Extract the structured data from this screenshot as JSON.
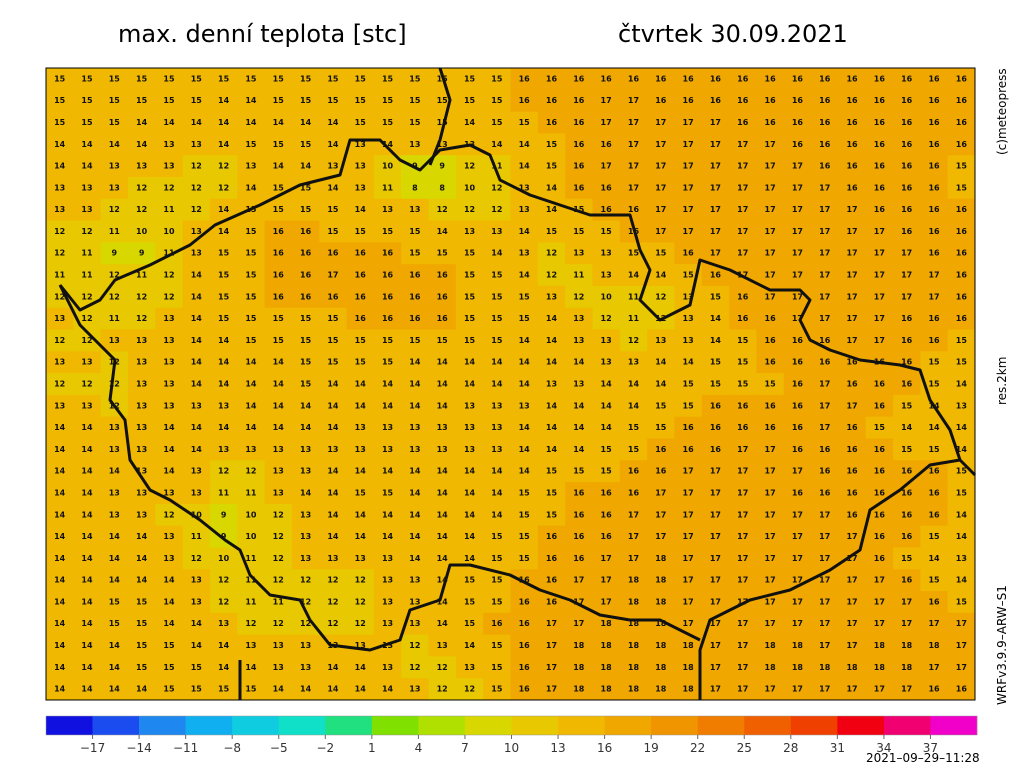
{
  "header": {
    "title": "max. denní teplota [stc]",
    "date": "čtvrtek 30.09.2021"
  },
  "side_labels": {
    "copyright": "(c)meteopress",
    "resolution": "res.2km",
    "model": "WRFv3.9.9–ARW–S1"
  },
  "timestamp": "2021–09–29–11:28",
  "colorbar": {
    "range": [
      -20,
      40
    ],
    "colors": [
      "#1010e0",
      "#1a4cf0",
      "#1e88f0",
      "#10b0f0",
      "#10cce0",
      "#10e0c8",
      "#20e080",
      "#80e000",
      "#b0e000",
      "#d8d800",
      "#e8c800",
      "#f0b800",
      "#f0a800",
      "#f09400",
      "#f07c00",
      "#f06000",
      "#f04000",
      "#f00010",
      "#f00070",
      "#f000c8"
    ],
    "ticks": [
      {
        "value": -17,
        "label": "−17"
      },
      {
        "value": -14,
        "label": "−14"
      },
      {
        "value": -11,
        "label": "−11"
      },
      {
        "value": -8,
        "label": "−8"
      },
      {
        "value": -5,
        "label": "−5"
      },
      {
        "value": -2,
        "label": "−2"
      },
      1,
      4,
      7,
      10,
      13,
      16,
      19,
      22,
      25,
      28,
      31,
      34,
      37
    ]
  },
  "grid": {
    "rows": [
      [
        15,
        15,
        15,
        15,
        15,
        15,
        15,
        15,
        15,
        15,
        15,
        15,
        15,
        15,
        15,
        15,
        15,
        16,
        16,
        16,
        16,
        16,
        16,
        16,
        16,
        16,
        16,
        16,
        16,
        16,
        16,
        16,
        16,
        16
      ],
      [
        15,
        15,
        15,
        15,
        15,
        15,
        14,
        14,
        15,
        15,
        15,
        15,
        15,
        15,
        15,
        15,
        15,
        16,
        16,
        16,
        17,
        17,
        16,
        16,
        16,
        16,
        16,
        16,
        16,
        16,
        16,
        16,
        16,
        16
      ],
      [
        15,
        15,
        15,
        14,
        14,
        14,
        14,
        14,
        14,
        14,
        14,
        15,
        15,
        15,
        15,
        14,
        15,
        15,
        16,
        16,
        17,
        17,
        17,
        17,
        17,
        16,
        16,
        16,
        16,
        16,
        16,
        16,
        16,
        16
      ],
      [
        14,
        14,
        14,
        14,
        13,
        13,
        14,
        15,
        15,
        15,
        14,
        13,
        14,
        13,
        13,
        13,
        14,
        14,
        15,
        16,
        16,
        17,
        17,
        17,
        17,
        17,
        17,
        16,
        16,
        16,
        16,
        16,
        16,
        16
      ],
      [
        14,
        14,
        13,
        13,
        13,
        12,
        12,
        13,
        14,
        14,
        13,
        13,
        10,
        9,
        9,
        12,
        11,
        14,
        15,
        16,
        17,
        17,
        17,
        17,
        17,
        17,
        17,
        17,
        16,
        16,
        16,
        16,
        16,
        15
      ],
      [
        13,
        13,
        13,
        12,
        12,
        12,
        12,
        14,
        15,
        15,
        14,
        13,
        11,
        8,
        8,
        10,
        12,
        13,
        14,
        16,
        16,
        17,
        17,
        17,
        17,
        17,
        17,
        17,
        17,
        16,
        16,
        16,
        16,
        15
      ],
      [
        13,
        13,
        12,
        12,
        11,
        12,
        14,
        15,
        15,
        15,
        15,
        14,
        13,
        13,
        12,
        12,
        12,
        13,
        14,
        15,
        16,
        16,
        17,
        17,
        17,
        17,
        17,
        17,
        17,
        17,
        16,
        16,
        16,
        16
      ],
      [
        12,
        12,
        11,
        10,
        10,
        13,
        14,
        15,
        16,
        16,
        15,
        15,
        15,
        15,
        14,
        13,
        13,
        14,
        15,
        15,
        15,
        16,
        17,
        17,
        17,
        17,
        17,
        17,
        17,
        17,
        17,
        16,
        16,
        16
      ],
      [
        12,
        11,
        9,
        9,
        11,
        13,
        15,
        15,
        16,
        16,
        16,
        16,
        16,
        15,
        15,
        15,
        14,
        13,
        12,
        13,
        13,
        15,
        15,
        16,
        17,
        17,
        17,
        17,
        17,
        17,
        17,
        17,
        16,
        16
      ],
      [
        11,
        11,
        12,
        11,
        12,
        14,
        15,
        15,
        16,
        16,
        17,
        16,
        16,
        16,
        16,
        15,
        15,
        14,
        12,
        11,
        13,
        14,
        14,
        15,
        16,
        17,
        17,
        17,
        17,
        17,
        17,
        17,
        17,
        16
      ],
      [
        12,
        12,
        12,
        12,
        12,
        14,
        15,
        15,
        16,
        16,
        16,
        16,
        16,
        16,
        16,
        15,
        15,
        15,
        13,
        12,
        10,
        11,
        12,
        13,
        15,
        16,
        17,
        17,
        17,
        17,
        17,
        17,
        17,
        16
      ],
      [
        13,
        12,
        11,
        12,
        13,
        14,
        15,
        15,
        15,
        15,
        15,
        16,
        16,
        16,
        16,
        15,
        15,
        15,
        14,
        13,
        12,
        11,
        12,
        13,
        14,
        16,
        16,
        17,
        17,
        17,
        17,
        16,
        16,
        16
      ],
      [
        12,
        12,
        13,
        13,
        13,
        14,
        14,
        15,
        15,
        15,
        15,
        15,
        15,
        15,
        15,
        15,
        15,
        14,
        14,
        13,
        13,
        12,
        13,
        13,
        14,
        15,
        16,
        16,
        16,
        17,
        17,
        16,
        16,
        15
      ],
      [
        13,
        13,
        12,
        13,
        13,
        14,
        14,
        14,
        14,
        15,
        15,
        15,
        15,
        14,
        14,
        14,
        14,
        14,
        14,
        14,
        13,
        13,
        14,
        14,
        15,
        15,
        16,
        16,
        16,
        16,
        16,
        16,
        15,
        15
      ],
      [
        12,
        12,
        12,
        13,
        13,
        14,
        14,
        14,
        14,
        15,
        14,
        14,
        14,
        14,
        14,
        14,
        14,
        14,
        13,
        13,
        14,
        14,
        14,
        15,
        15,
        15,
        15,
        16,
        17,
        16,
        16,
        16,
        15,
        14
      ],
      [
        13,
        13,
        12,
        13,
        13,
        13,
        13,
        14,
        14,
        14,
        14,
        14,
        14,
        14,
        14,
        13,
        13,
        13,
        14,
        14,
        14,
        14,
        15,
        15,
        16,
        16,
        16,
        16,
        17,
        17,
        16,
        15,
        14,
        13
      ],
      [
        14,
        14,
        13,
        13,
        14,
        14,
        14,
        14,
        14,
        14,
        14,
        13,
        13,
        13,
        13,
        13,
        13,
        14,
        14,
        14,
        14,
        15,
        15,
        16,
        16,
        16,
        16,
        16,
        17,
        16,
        15,
        14,
        14,
        14
      ],
      [
        14,
        14,
        13,
        13,
        14,
        14,
        13,
        13,
        13,
        13,
        13,
        13,
        13,
        13,
        13,
        13,
        13,
        14,
        14,
        14,
        15,
        15,
        16,
        16,
        16,
        17,
        17,
        16,
        16,
        16,
        16,
        15,
        15,
        14
      ],
      [
        14,
        14,
        14,
        13,
        14,
        13,
        12,
        12,
        13,
        13,
        14,
        14,
        14,
        14,
        14,
        14,
        14,
        14,
        15,
        15,
        15,
        16,
        16,
        17,
        17,
        17,
        17,
        17,
        16,
        16,
        16,
        16,
        16,
        15
      ],
      [
        14,
        14,
        13,
        13,
        13,
        13,
        11,
        11,
        13,
        14,
        14,
        15,
        15,
        14,
        14,
        14,
        14,
        15,
        15,
        16,
        16,
        16,
        17,
        17,
        17,
        17,
        17,
        16,
        16,
        16,
        16,
        16,
        16,
        15
      ],
      [
        14,
        14,
        13,
        13,
        12,
        10,
        9,
        10,
        12,
        13,
        14,
        14,
        14,
        14,
        14,
        14,
        14,
        15,
        15,
        16,
        16,
        17,
        17,
        17,
        17,
        17,
        17,
        17,
        17,
        16,
        16,
        16,
        16,
        14
      ],
      [
        14,
        14,
        14,
        14,
        13,
        11,
        9,
        10,
        12,
        13,
        14,
        14,
        14,
        14,
        14,
        14,
        15,
        15,
        16,
        16,
        16,
        17,
        17,
        17,
        17,
        17,
        17,
        17,
        17,
        17,
        16,
        16,
        15,
        14
      ],
      [
        14,
        14,
        14,
        14,
        13,
        12,
        10,
        11,
        12,
        13,
        13,
        13,
        13,
        14,
        14,
        14,
        15,
        15,
        16,
        16,
        17,
        17,
        18,
        17,
        17,
        17,
        17,
        17,
        17,
        17,
        16,
        15,
        14,
        13
      ],
      [
        14,
        14,
        14,
        14,
        14,
        13,
        12,
        11,
        12,
        12,
        12,
        12,
        13,
        13,
        14,
        15,
        15,
        16,
        16,
        17,
        17,
        18,
        18,
        17,
        17,
        17,
        17,
        17,
        17,
        17,
        17,
        16,
        15,
        14
      ],
      [
        14,
        14,
        15,
        15,
        14,
        13,
        12,
        11,
        11,
        12,
        12,
        12,
        13,
        13,
        14,
        15,
        15,
        16,
        16,
        17,
        17,
        18,
        18,
        17,
        17,
        17,
        17,
        17,
        17,
        17,
        17,
        17,
        16,
        15
      ],
      [
        14,
        14,
        15,
        15,
        14,
        14,
        13,
        12,
        12,
        12,
        12,
        12,
        13,
        13,
        14,
        15,
        16,
        16,
        17,
        17,
        18,
        18,
        18,
        17,
        17,
        17,
        17,
        17,
        17,
        17,
        17,
        17,
        17,
        17
      ],
      [
        14,
        14,
        14,
        15,
        15,
        14,
        14,
        13,
        13,
        13,
        13,
        13,
        13,
        12,
        13,
        14,
        15,
        16,
        17,
        18,
        18,
        18,
        18,
        18,
        17,
        17,
        18,
        18,
        17,
        17,
        18,
        18,
        18,
        17
      ],
      [
        14,
        14,
        14,
        15,
        15,
        15,
        14,
        14,
        13,
        13,
        14,
        14,
        13,
        12,
        12,
        13,
        15,
        16,
        17,
        18,
        18,
        18,
        18,
        18,
        17,
        17,
        18,
        18,
        18,
        18,
        18,
        18,
        17,
        17
      ],
      [
        14,
        14,
        14,
        14,
        15,
        15,
        15,
        15,
        14,
        14,
        14,
        14,
        14,
        13,
        12,
        12,
        15,
        16,
        17,
        18,
        18,
        18,
        18,
        18,
        17,
        17,
        17,
        17,
        17,
        17,
        17,
        17,
        16,
        16
      ]
    ]
  }
}
